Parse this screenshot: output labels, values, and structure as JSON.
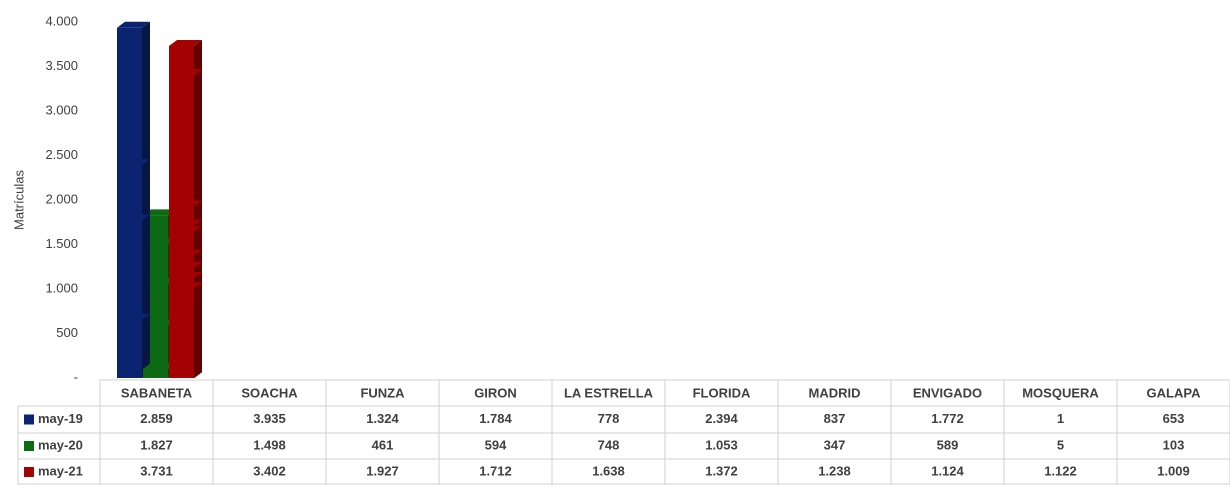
{
  "chart_data": {
    "type": "bar3d",
    "y_axis_label": "Matrículas",
    "categories": [
      "SABANETA",
      "SOACHA",
      "FUNZA",
      "GIRON",
      "LA ESTRELLA",
      "FLORIDA",
      "MADRID",
      "ENVIGADO",
      "MOSQUERA",
      "GALAPA"
    ],
    "series": [
      {
        "name": "may-19",
        "color": "#0b2470",
        "values": [
          2859,
          3935,
          1324,
          1784,
          778,
          2394,
          837,
          1772,
          1,
          653
        ],
        "value_labels": [
          "2.859",
          "3.935",
          "1.324",
          "1.784",
          "778",
          "2.394",
          "837",
          "1.772",
          "1",
          "653"
        ]
      },
      {
        "name": "may-20",
        "color": "#0b6a12",
        "values": [
          1827,
          1498,
          461,
          594,
          748,
          1053,
          347,
          589,
          5,
          103
        ],
        "value_labels": [
          "1.827",
          "1.498",
          "461",
          "594",
          "748",
          "1.053",
          "347",
          "589",
          "5",
          "103"
        ]
      },
      {
        "name": "may-21",
        "color": "#a40202",
        "values": [
          3731,
          3402,
          1927,
          1712,
          1638,
          1372,
          1238,
          1124,
          1122,
          1009
        ],
        "value_labels": [
          "3.731",
          "3.402",
          "1.927",
          "1.712",
          "1.638",
          "1.372",
          "1.238",
          "1.124",
          "1.122",
          "1.009"
        ]
      }
    ],
    "ylim": [
      0,
      4000
    ],
    "yticks": [
      {
        "value": 0,
        "label": "-"
      },
      500,
      {
        "value": 1000,
        "label": "1.000"
      },
      {
        "value": 1500,
        "label": "1.500"
      },
      {
        "value": 2000,
        "label": "2.000"
      },
      {
        "value": 2500,
        "label": "2.500"
      },
      {
        "value": 3000,
        "label": "3.000"
      },
      {
        "value": 3500,
        "label": "3.500"
      },
      {
        "value": 4000,
        "label": "4.000"
      }
    ],
    "grid": false,
    "data_table": true
  }
}
